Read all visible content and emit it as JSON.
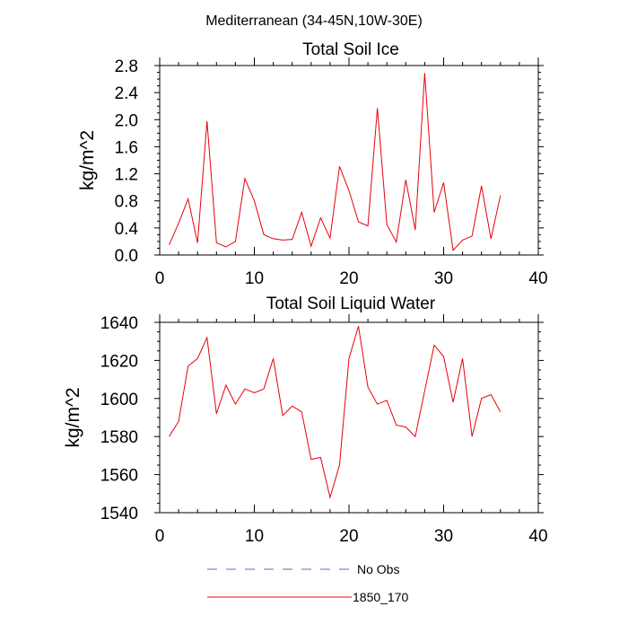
{
  "main_title": "Mediterranean (34-45N,10W-30E)",
  "chart_data": [
    {
      "type": "line",
      "title": "Total Soil Ice",
      "xlabel": "",
      "ylabel": "kg/m^2",
      "xlim": [
        0,
        40
      ],
      "ylim": [
        0.0,
        2.8
      ],
      "x_ticks": [
        0,
        10,
        20,
        30,
        40
      ],
      "y_ticks": [
        0.0,
        0.4,
        0.8,
        1.2,
        1.6,
        2.0,
        2.4,
        2.8
      ],
      "x_tick_labels": [
        "0",
        "10",
        "20",
        "30",
        "40"
      ],
      "y_tick_labels": [
        "0.0",
        "0.4",
        "0.8",
        "1.2",
        "1.6",
        "2.0",
        "2.4",
        "2.8"
      ],
      "grid": false,
      "series": [
        {
          "name": "1850_170",
          "color": "#e8000b",
          "x": [
            1,
            2,
            3,
            4,
            5,
            6,
            7,
            8,
            9,
            10,
            11,
            12,
            13,
            14,
            15,
            16,
            17,
            18,
            19,
            20,
            21,
            22,
            23,
            24,
            25,
            26,
            27,
            28,
            29,
            30,
            31,
            32,
            33,
            34,
            35,
            36
          ],
          "y": [
            0.15,
            0.47,
            0.83,
            0.18,
            1.98,
            0.18,
            0.12,
            0.2,
            1.13,
            0.8,
            0.3,
            0.24,
            0.22,
            0.23,
            0.63,
            0.13,
            0.55,
            0.25,
            1.31,
            0.95,
            0.49,
            0.43,
            2.17,
            0.45,
            0.19,
            1.11,
            0.37,
            2.69,
            0.63,
            1.07,
            0.07,
            0.22,
            0.28,
            1.02,
            0.24,
            0.88
          ]
        }
      ]
    },
    {
      "type": "line",
      "title": "Total Soil Liquid Water",
      "xlabel": "",
      "ylabel": "kg/m^2",
      "xlim": [
        0,
        40
      ],
      "ylim": [
        1540,
        1640
      ],
      "x_ticks": [
        0,
        10,
        20,
        30,
        40
      ],
      "y_ticks": [
        1540,
        1560,
        1580,
        1600,
        1620,
        1640
      ],
      "x_tick_labels": [
        "0",
        "10",
        "20",
        "30",
        "40"
      ],
      "y_tick_labels": [
        "1540",
        "1560",
        "1580",
        "1600",
        "1620",
        "1640"
      ],
      "grid": false,
      "series": [
        {
          "name": "1850_170",
          "color": "#e8000b",
          "x": [
            1,
            2,
            3,
            4,
            5,
            6,
            7,
            8,
            9,
            10,
            11,
            12,
            13,
            14,
            15,
            16,
            17,
            18,
            19,
            20,
            21,
            22,
            23,
            24,
            25,
            26,
            27,
            28,
            29,
            30,
            31,
            32,
            33,
            34,
            35,
            36
          ],
          "y": [
            1580,
            1588,
            1617,
            1621,
            1632,
            1592,
            1607,
            1597,
            1605,
            1603,
            1605,
            1621,
            1591,
            1596,
            1593,
            1568,
            1569,
            1548,
            1565,
            1621,
            1638,
            1606,
            1597,
            1599,
            1586,
            1585,
            1580,
            1604,
            1628,
            1622,
            1598,
            1621,
            1580,
            1600,
            1602,
            1593
          ]
        }
      ]
    }
  ],
  "legend": {
    "placement": "bottom",
    "items": [
      {
        "label": "No Obs",
        "color": "#6666cc",
        "style": "dashed"
      },
      {
        "label": "1850_170",
        "color": "#e8000b",
        "style": "solid"
      }
    ]
  }
}
